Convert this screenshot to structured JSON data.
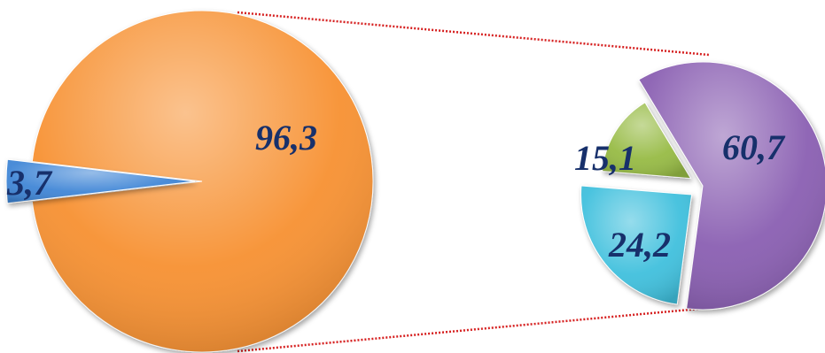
{
  "chart_data": {
    "type": "pie",
    "subtype": "pie-of-pie",
    "main_pie": {
      "slices": [
        {
          "label": "3,7",
          "value": 3.7,
          "color": "#3f86d6",
          "exploded": true
        },
        {
          "label": "96,3",
          "value": 96.3,
          "color": "#f79132"
        }
      ]
    },
    "secondary_pie": {
      "slices": [
        {
          "label": "60,7",
          "value": 60.7,
          "color": "#8a5fb2"
        },
        {
          "label": "24,2",
          "value": 24.2,
          "color": "#3fc0dd"
        },
        {
          "label": "15,1",
          "value": 15.1,
          "color": "#97bb45"
        }
      ]
    },
    "connector_color": "#d62020",
    "connector_style": "dotted"
  }
}
